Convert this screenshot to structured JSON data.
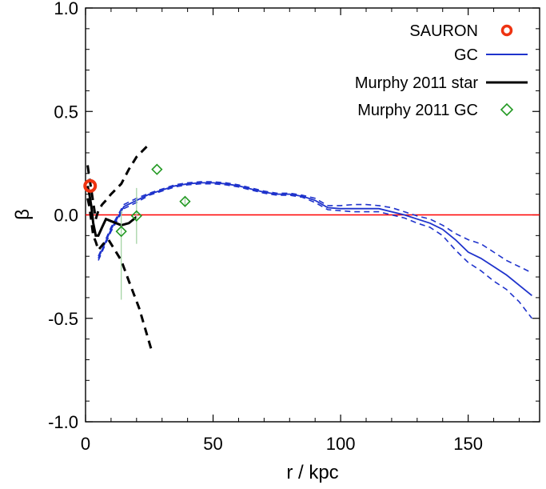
{
  "chart_data": {
    "type": "line",
    "title": "",
    "xlabel": "r / kpc",
    "ylabel": "β",
    "xlim": [
      0,
      178
    ],
    "ylim": [
      -1.0,
      1.0
    ],
    "xticks": [
      0,
      50,
      100,
      150
    ],
    "xtick_labels": [
      "0",
      "50",
      "100",
      "150"
    ],
    "yticks": [
      1.0,
      0.5,
      0.0,
      -0.5,
      -1.0
    ],
    "ytick_labels": [
      "1.0",
      "0.5",
      "0.0",
      "-0.5",
      "-1.0"
    ],
    "grid": false,
    "legend_position": "top-right",
    "reference_line": {
      "y": 0,
      "color": "#ff0000"
    },
    "series": [
      {
        "name": "SAURON",
        "style": "open-circle",
        "color": "#ee3311",
        "points": [
          [
            1.8,
            0.14
          ]
        ]
      },
      {
        "name": "GC",
        "style": "line",
        "color": "#1f33cc",
        "x": [
          5,
          10,
          15,
          20,
          25,
          30,
          35,
          40,
          45,
          50,
          55,
          60,
          65,
          70,
          75,
          80,
          85,
          90,
          95,
          100,
          105,
          110,
          115,
          120,
          125,
          130,
          135,
          140,
          145,
          150,
          155,
          160,
          165,
          170,
          175
        ],
        "y": [
          -0.21,
          -0.07,
          0.04,
          0.07,
          0.1,
          0.12,
          0.14,
          0.15,
          0.155,
          0.155,
          0.15,
          0.14,
          0.125,
          0.11,
          0.1,
          0.1,
          0.09,
          0.07,
          0.035,
          0.03,
          0.03,
          0.03,
          0.03,
          0.015,
          0.0,
          -0.02,
          -0.04,
          -0.07,
          -0.12,
          -0.18,
          -0.21,
          -0.25,
          -0.29,
          -0.34,
          -0.39
        ],
        "upper": [
          -0.2,
          -0.06,
          0.05,
          0.08,
          0.105,
          0.125,
          0.145,
          0.155,
          0.16,
          0.16,
          0.155,
          0.145,
          0.13,
          0.115,
          0.105,
          0.105,
          0.095,
          0.08,
          0.045,
          0.045,
          0.05,
          0.05,
          0.045,
          0.035,
          0.015,
          -0.005,
          -0.02,
          -0.05,
          -0.09,
          -0.12,
          -0.14,
          -0.18,
          -0.22,
          -0.25,
          -0.28
        ],
        "lower": [
          -0.22,
          -0.08,
          0.03,
          0.06,
          0.095,
          0.115,
          0.135,
          0.145,
          0.15,
          0.15,
          0.145,
          0.135,
          0.12,
          0.105,
          0.095,
          0.095,
          0.085,
          0.06,
          0.025,
          0.02,
          0.015,
          0.015,
          0.015,
          0.0,
          -0.015,
          -0.04,
          -0.06,
          -0.1,
          -0.17,
          -0.23,
          -0.27,
          -0.32,
          -0.36,
          -0.42,
          -0.5
        ]
      },
      {
        "name": "Murphy 2011 star",
        "style": "line",
        "color": "#000000",
        "x": [
          0.8,
          1.5,
          2.3,
          3.0,
          4.0,
          5.0,
          6.5,
          8.0,
          10.0,
          12.0,
          14.0,
          17.0,
          20.0
        ],
        "y": [
          0.14,
          0.1,
          0.04,
          -0.04,
          -0.1,
          -0.1,
          -0.06,
          -0.02,
          -0.03,
          -0.04,
          -0.05,
          -0.04,
          -0.01
        ],
        "upper": [
          0.24,
          0.18,
          0.12,
          0.06,
          -0.02,
          0.02,
          0.05,
          0.07,
          0.1,
          0.15,
          0.22,
          0.28,
          0.33
        ],
        "upper_x": [
          0.8,
          1.5,
          2.3,
          3.0,
          4.0,
          5.0,
          6.5,
          8.0,
          10.0,
          14.0,
          17.0,
          20.0,
          24.0
        ],
        "lower": [
          0.08,
          0.04,
          -0.03,
          -0.1,
          -0.13,
          -0.17,
          -0.14,
          -0.12,
          -0.16,
          -0.22,
          -0.32,
          -0.45,
          -0.66
        ],
        "lower_x": [
          0.8,
          1.5,
          2.3,
          3.0,
          4.0,
          5.0,
          7.0,
          9.0,
          11.0,
          14.0,
          17.0,
          21.0,
          26.0
        ]
      },
      {
        "name": "Murphy 2011 GC",
        "style": "open-diamond",
        "color": "#229922",
        "x": [
          14,
          20,
          28,
          39
        ],
        "y": [
          -0.08,
          -0.005,
          0.22,
          0.065
        ],
        "err_low": [
          -0.41,
          -0.14,
          0.2,
          0.04
        ],
        "err_high": [
          0.02,
          0.13,
          0.2,
          0.09
        ]
      }
    ]
  },
  "legend": [
    {
      "label": "SAURON",
      "marker": "open-circle",
      "color": "#ee3311"
    },
    {
      "label": "GC",
      "marker": "line",
      "color": "#1f33cc"
    },
    {
      "label": "Murphy 2011 star",
      "marker": "line",
      "color": "#000000"
    },
    {
      "label": "Murphy 2011 GC",
      "marker": "open-diamond",
      "color": "#229922"
    }
  ]
}
